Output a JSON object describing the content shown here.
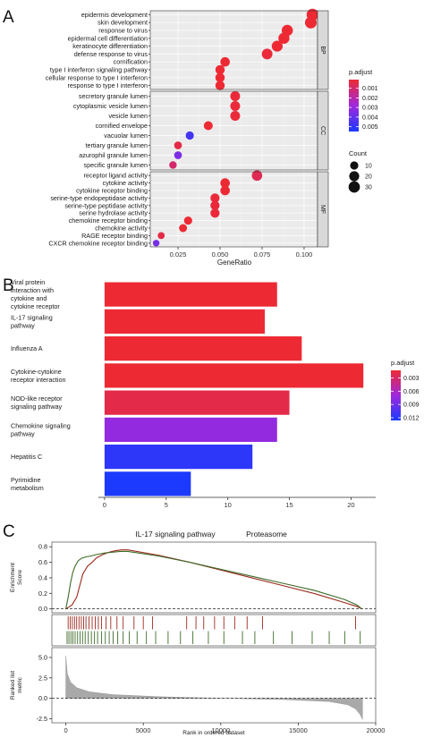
{
  "panels": {
    "a": "A",
    "b": "B",
    "c": "C"
  },
  "chart_data": [
    {
      "type": "scatter",
      "xlabel": "GeneRatio",
      "xlim": [
        0.0085,
        0.108
      ],
      "xticks": [
        0.025,
        0.05,
        0.075,
        0.1
      ],
      "xtick_labels": [
        "0.025",
        "0.050",
        "0.075",
        "0.100"
      ],
      "facets": [
        {
          "name": "BP",
          "terms": [
            {
              "term": "epidermis development",
              "ratio": 0.105,
              "count": 34,
              "padj": 0.0001
            },
            {
              "term": "skin development",
              "ratio": 0.104,
              "count": 33,
              "padj": 0.0001
            },
            {
              "term": "response to virus",
              "ratio": 0.09,
              "count": 29,
              "padj": 0.0001
            },
            {
              "term": "epidermal cell differentiation",
              "ratio": 0.088,
              "count": 28,
              "padj": 0.0001
            },
            {
              "term": "keratinocyte differentiation",
              "ratio": 0.084,
              "count": 27,
              "padj": 0.0001
            },
            {
              "term": "defense response to virus",
              "ratio": 0.078,
              "count": 25,
              "padj": 0.0002
            },
            {
              "term": "cornification",
              "ratio": 0.053,
              "count": 17,
              "padj": 0.0001
            },
            {
              "term": "type I interferon signaling pathway",
              "ratio": 0.05,
              "count": 16,
              "padj": 0.0001
            },
            {
              "term": "cellular response to type I interferon",
              "ratio": 0.05,
              "count": 16,
              "padj": 0.0001
            },
            {
              "term": "response to type I interferon",
              "ratio": 0.05,
              "count": 16,
              "padj": 0.0001
            }
          ]
        },
        {
          "name": "CC",
          "terms": [
            {
              "term": "secretory granule lumen",
              "ratio": 0.059,
              "count": 19,
              "padj": 0.0002
            },
            {
              "term": "cytoplasmic vesicle lumen",
              "ratio": 0.059,
              "count": 19,
              "padj": 0.0002
            },
            {
              "term": "vesicle lumen",
              "ratio": 0.059,
              "count": 19,
              "padj": 0.0002
            },
            {
              "term": "cornified envelope",
              "ratio": 0.043,
              "count": 14,
              "padj": 0.0001
            },
            {
              "term": "vacuolar lumen",
              "ratio": 0.032,
              "count": 10,
              "padj": 0.0047
            },
            {
              "term": "tertiary granule lumen",
              "ratio": 0.025,
              "count": 8,
              "padj": 0.0004
            },
            {
              "term": "azurophil granule lumen",
              "ratio": 0.025,
              "count": 8,
              "padj": 0.0035
            },
            {
              "term": "specific granule lumen",
              "ratio": 0.022,
              "count": 7,
              "padj": 0.001
            }
          ]
        },
        {
          "name": "MF",
          "terms": [
            {
              "term": "receptor ligand activity",
              "ratio": 0.072,
              "count": 23,
              "padj": 0.0006
            },
            {
              "term": "cytokine activity",
              "ratio": 0.053,
              "count": 17,
              "padj": 0.0001
            },
            {
              "term": "cytokine receptor binding",
              "ratio": 0.053,
              "count": 17,
              "padj": 0.0001
            },
            {
              "term": "serine-type endopeptidase activity",
              "ratio": 0.047,
              "count": 15,
              "padj": 0.0002
            },
            {
              "term": "serine-type peptidase activity",
              "ratio": 0.047,
              "count": 15,
              "padj": 0.0002
            },
            {
              "term": "serine hydrolase activity",
              "ratio": 0.047,
              "count": 15,
              "padj": 0.0002
            },
            {
              "term": "chemokine receptor binding",
              "ratio": 0.031,
              "count": 10,
              "padj": 0.0001
            },
            {
              "term": "chemokine activity",
              "ratio": 0.028,
              "count": 9,
              "padj": 0.0001
            },
            {
              "term": "RAGE receptor binding",
              "ratio": 0.015,
              "count": 5,
              "padj": 0.0004
            },
            {
              "term": "CXCR chemokine receptor binding",
              "ratio": 0.012,
              "count": 4,
              "padj": 0.0036
            }
          ]
        }
      ],
      "color_legend": {
        "title": "p.adjust",
        "labels": [
          "0.001",
          "0.002",
          "0.003",
          "0.004",
          "0.005"
        ],
        "values": [
          0.001,
          0.002,
          0.003,
          0.004,
          0.005
        ],
        "range": [
          0.0001,
          0.0055
        ]
      },
      "size_legend": {
        "title": "Count",
        "labels": [
          "10",
          "20",
          "30"
        ],
        "values": [
          10,
          20,
          30
        ]
      }
    },
    {
      "type": "bar",
      "orientation": "horizontal",
      "xlim": [
        -0.5,
        22
      ],
      "xticks": [
        0,
        5,
        10,
        15,
        20
      ],
      "xtick_labels": [
        "0",
        "5",
        "10",
        "15",
        "20"
      ],
      "categories": [
        {
          "lines": [
            "Viral protein",
            "interaction with",
            "cytokine and",
            "cytokine receptor"
          ],
          "value": 14,
          "padj": 0.0013
        },
        {
          "lines": [
            "IL-17 signaling",
            "pathway"
          ],
          "value": 13,
          "padj": 0.0013
        },
        {
          "lines": [
            "Influenza A"
          ],
          "value": 16,
          "padj": 0.0013
        },
        {
          "lines": [
            "Cytokine-cytokine",
            "receptor interaction"
          ],
          "value": 21,
          "padj": 0.0013
        },
        {
          "lines": [
            "NOD-like receptor",
            "signaling pathway"
          ],
          "value": 15,
          "padj": 0.002
        },
        {
          "lines": [
            "Chemokine signaling",
            "pathway"
          ],
          "value": 14,
          "padj": 0.0075
        },
        {
          "lines": [
            "Hepatitis C"
          ],
          "value": 12,
          "padj": 0.0118
        },
        {
          "lines": [
            "Pyrimidine",
            "metabolism"
          ],
          "value": 7,
          "padj": 0.0125
        }
      ],
      "color_legend": {
        "title": "p.adjust",
        "labels": [
          "0.003",
          "0.006",
          "0.009",
          "0.012"
        ],
        "values": [
          0.003,
          0.006,
          0.009,
          0.012
        ],
        "range": [
          0.0013,
          0.0126
        ]
      }
    },
    {
      "type": "line",
      "legend": [
        "IL-17 signaling pathway",
        "Proteasome"
      ],
      "ylabel": "Enrichment Score",
      "ylabel_lines": [
        "Enrichment",
        "Score"
      ],
      "ylim": [
        -0.05,
        0.86
      ],
      "yticks": [
        0.0,
        0.2,
        0.4,
        0.6,
        0.8
      ],
      "ytick_labels": [
        "0.0",
        "0.2",
        "0.4",
        "0.6",
        "0.8"
      ],
      "xlim": [
        -900,
        20000
      ],
      "series": [
        {
          "name": "IL-17 signaling pathway",
          "color": "#9c2a1e",
          "x": [
            0,
            400,
            700,
            900,
            1100,
            1400,
            1700,
            2000,
            2400,
            2800,
            3200,
            3600,
            4000,
            6000,
            8000,
            10000,
            12000,
            14000,
            16000,
            18000,
            18800,
            19100
          ],
          "y": [
            0.0,
            0.05,
            0.15,
            0.3,
            0.45,
            0.55,
            0.6,
            0.66,
            0.7,
            0.73,
            0.75,
            0.76,
            0.76,
            0.69,
            0.6,
            0.5,
            0.4,
            0.3,
            0.2,
            0.08,
            0.03,
            0.0
          ]
        },
        {
          "name": "Proteasome",
          "color": "#3d6b28",
          "x": [
            0,
            150,
            300,
            450,
            600,
            800,
            1000,
            1300,
            1600,
            2000,
            2500,
            3000,
            3500,
            4000,
            6000,
            8000,
            10000,
            12000,
            14000,
            16000,
            18000,
            18800,
            19100
          ],
          "y": [
            0.0,
            0.15,
            0.33,
            0.47,
            0.55,
            0.62,
            0.65,
            0.67,
            0.68,
            0.7,
            0.72,
            0.73,
            0.74,
            0.74,
            0.68,
            0.6,
            0.51,
            0.42,
            0.33,
            0.24,
            0.12,
            0.05,
            0.0
          ]
        }
      ],
      "hits": {
        "IL-17 signaling pathway": [
          150,
          280,
          420,
          560,
          700,
          850,
          1000,
          1150,
          1300,
          1500,
          1700,
          1900,
          2100,
          2300,
          2600,
          2900,
          3300,
          3700,
          4400,
          5000,
          5600,
          7800,
          8400,
          8900,
          9600,
          10200,
          10900,
          11700,
          12700,
          18700
        ],
        "Proteasome": [
          80,
          200,
          330,
          460,
          600,
          760,
          920,
          1080,
          1250,
          1450,
          1650,
          1850,
          2050,
          2300,
          2550,
          2800,
          3050,
          3350,
          3700,
          4100,
          4600,
          5200,
          5800,
          6600,
          7400,
          8200,
          9200,
          10200,
          11400,
          12200,
          13400,
          14600,
          15900,
          17000,
          18000,
          19000
        ]
      },
      "rank_metric": {
        "ylabel_lines": [
          "Ranked list",
          "metric"
        ],
        "ylim": [
          -3,
          6.2
        ],
        "yticks": [
          -2.5,
          0.0,
          2.5,
          5.0
        ],
        "ytick_labels": [
          "-2.5",
          "0.0",
          "2.5",
          "5.0"
        ],
        "xlabel": "Rank in ordered dataset",
        "xticks": [
          0,
          5000,
          10000,
          15000,
          20000
        ],
        "xtick_labels": [
          "0",
          "5000",
          "10000",
          "15000",
          "20000"
        ],
        "x": [
          0,
          100,
          300,
          700,
          1500,
          3000,
          6000,
          10000,
          14000,
          17000,
          18200,
          18700,
          19000,
          19150
        ],
        "y": [
          5.2,
          3.0,
          2.0,
          1.3,
          0.8,
          0.45,
          0.2,
          0.0,
          -0.15,
          -0.4,
          -0.8,
          -1.3,
          -2.0,
          -2.6
        ]
      }
    }
  ]
}
